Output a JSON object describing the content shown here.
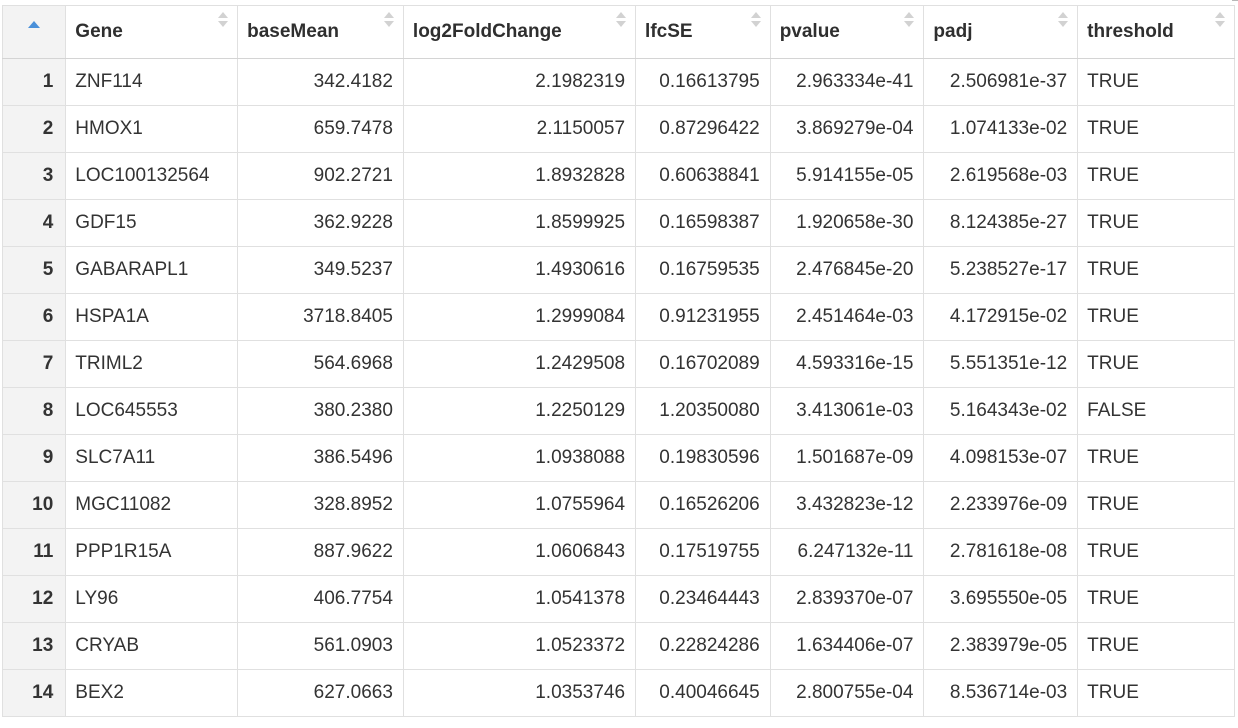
{
  "table": {
    "index_sort_icon": "sort-ascending-icon",
    "columns": [
      {
        "label": "Gene",
        "key": "gene",
        "align": "left"
      },
      {
        "label": "baseMean",
        "key": "baseMean",
        "align": "right"
      },
      {
        "label": "log2FoldChange",
        "key": "log2FoldChange",
        "align": "right"
      },
      {
        "label": "lfcSE",
        "key": "lfcSE",
        "align": "right"
      },
      {
        "label": "pvalue",
        "key": "pvalue",
        "align": "right"
      },
      {
        "label": "padj",
        "key": "padj",
        "align": "right"
      },
      {
        "label": "threshold",
        "key": "threshold",
        "align": "left"
      }
    ],
    "rows": [
      {
        "index": "1",
        "cells": [
          "ZNF114",
          "342.4182",
          "2.1982319",
          "0.16613795",
          "2.963334e-41",
          "2.506981e-37",
          "TRUE"
        ]
      },
      {
        "index": "2",
        "cells": [
          "HMOX1",
          "659.7478",
          "2.1150057",
          "0.87296422",
          "3.869279e-04",
          "1.074133e-02",
          "TRUE"
        ]
      },
      {
        "index": "3",
        "cells": [
          "LOC100132564",
          "902.2721",
          "1.8932828",
          "0.60638841",
          "5.914155e-05",
          "2.619568e-03",
          "TRUE"
        ]
      },
      {
        "index": "4",
        "cells": [
          "GDF15",
          "362.9228",
          "1.8599925",
          "0.16598387",
          "1.920658e-30",
          "8.124385e-27",
          "TRUE"
        ]
      },
      {
        "index": "5",
        "cells": [
          "GABARAPL1",
          "349.5237",
          "1.4930616",
          "0.16759535",
          "2.476845e-20",
          "5.238527e-17",
          "TRUE"
        ]
      },
      {
        "index": "6",
        "cells": [
          "HSPA1A",
          "3718.8405",
          "1.2999084",
          "0.91231955",
          "2.451464e-03",
          "4.172915e-02",
          "TRUE"
        ]
      },
      {
        "index": "7",
        "cells": [
          "TRIML2",
          "564.6968",
          "1.2429508",
          "0.16702089",
          "4.593316e-15",
          "5.551351e-12",
          "TRUE"
        ]
      },
      {
        "index": "8",
        "cells": [
          "LOC645553",
          "380.2380",
          "1.2250129",
          "1.20350080",
          "3.413061e-03",
          "5.164343e-02",
          "FALSE"
        ]
      },
      {
        "index": "9",
        "cells": [
          "SLC7A11",
          "386.5496",
          "1.0938088",
          "0.19830596",
          "1.501687e-09",
          "4.098153e-07",
          "TRUE"
        ]
      },
      {
        "index": "10",
        "cells": [
          "MGC11082",
          "328.8952",
          "1.0755964",
          "0.16526206",
          "3.432823e-12",
          "2.233976e-09",
          "TRUE"
        ]
      },
      {
        "index": "11",
        "cells": [
          "PPP1R15A",
          "887.9622",
          "1.0606843",
          "0.17519755",
          "6.247132e-11",
          "2.781618e-08",
          "TRUE"
        ]
      },
      {
        "index": "12",
        "cells": [
          "LY96",
          "406.7754",
          "1.0541378",
          "0.23464443",
          "2.839370e-07",
          "3.695550e-05",
          "TRUE"
        ]
      },
      {
        "index": "13",
        "cells": [
          "CRYAB",
          "561.0903",
          "1.0523372",
          "0.22824286",
          "1.634406e-07",
          "2.383979e-05",
          "TRUE"
        ]
      },
      {
        "index": "14",
        "cells": [
          "BEX2",
          "627.0663",
          "1.0353746",
          "0.40046645",
          "2.800755e-04",
          "8.536714e-03",
          "TRUE"
        ]
      }
    ]
  },
  "colors": {
    "sort_active": "#4a90d9",
    "sort_inactive": "#d2d2d2",
    "index_background": "#f3f3f3",
    "grid_line": "#e0e0e0"
  }
}
